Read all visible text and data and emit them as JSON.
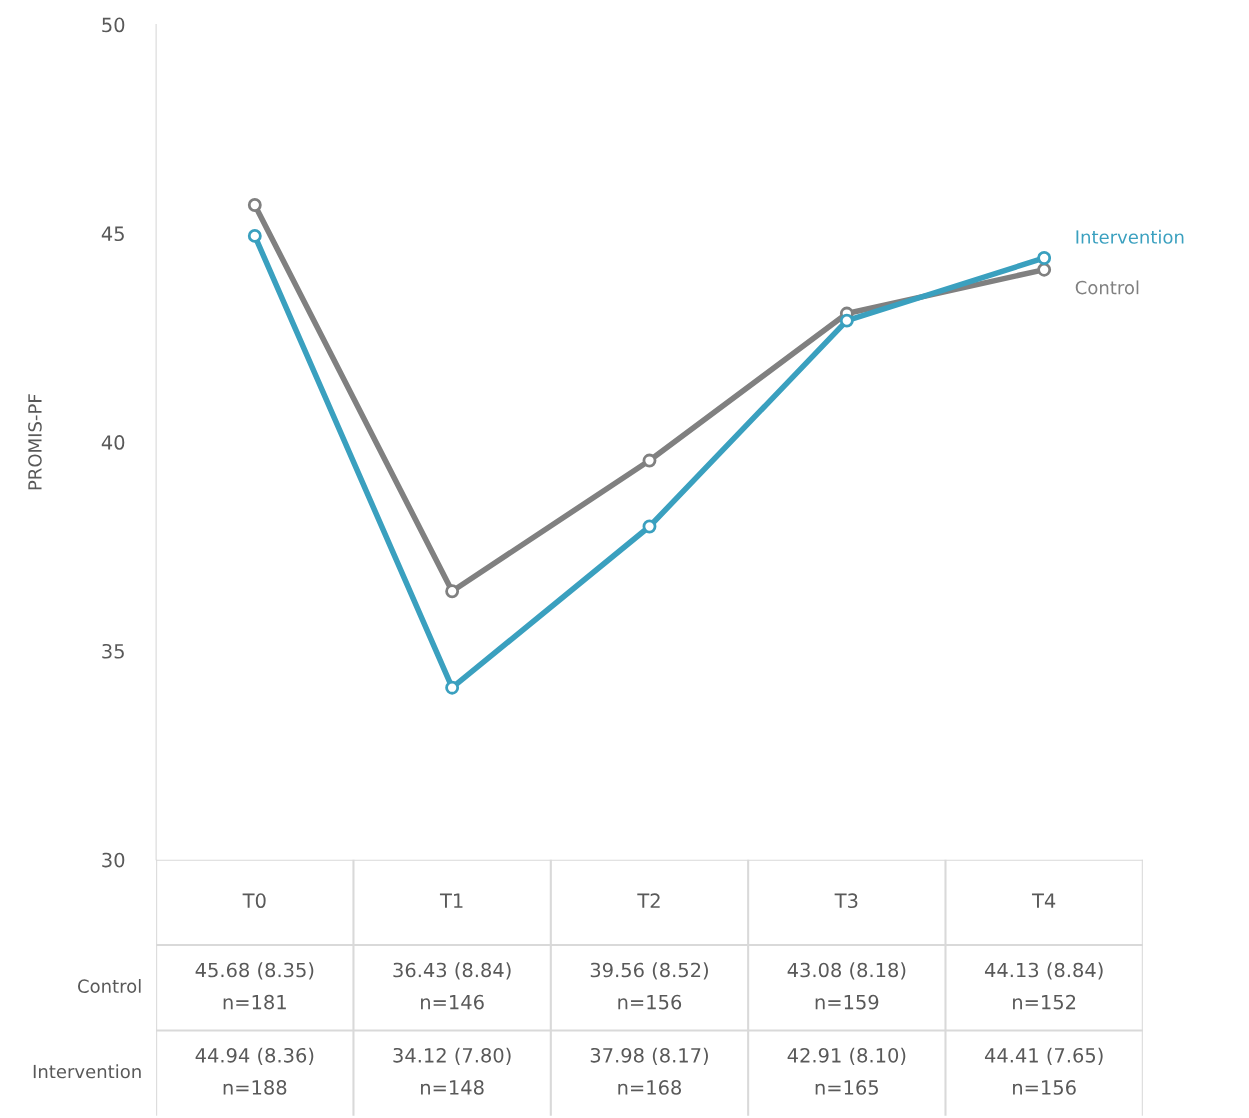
{
  "chart_data": {
    "type": "line",
    "ylabel": "PROMIS-PF",
    "categories": [
      "T0",
      "T1",
      "T2",
      "T3",
      "T4"
    ],
    "ylim": [
      30,
      50
    ],
    "yticks": [
      30,
      35,
      40,
      45,
      50
    ],
    "grid": false,
    "legend": "right",
    "marker": "circle",
    "line_style": "solid",
    "series": [
      {
        "name": "Control",
        "color": "#808080",
        "values": [
          45.68,
          36.43,
          39.56,
          43.08,
          44.13
        ],
        "value_labels": [
          "45.68 (8.35)\nn=181",
          "36.43 (8.84)\nn=146",
          "39.56 (8.52)\nn=156",
          "43.08 (8.18)\nn=159",
          "44.13 (8.84)\nn=152"
        ]
      },
      {
        "name": "Intervention",
        "color": "#3aa0bf",
        "values": [
          44.94,
          34.12,
          37.98,
          42.91,
          44.41
        ],
        "value_labels": [
          "44.94 (8.36)\nn=188",
          "34.12 (7.80)\nn=148",
          "37.98 (8.17)\nn=168",
          "42.91 (8.10)\nn=165",
          "44.41 (7.65)\nn=156"
        ]
      }
    ]
  }
}
